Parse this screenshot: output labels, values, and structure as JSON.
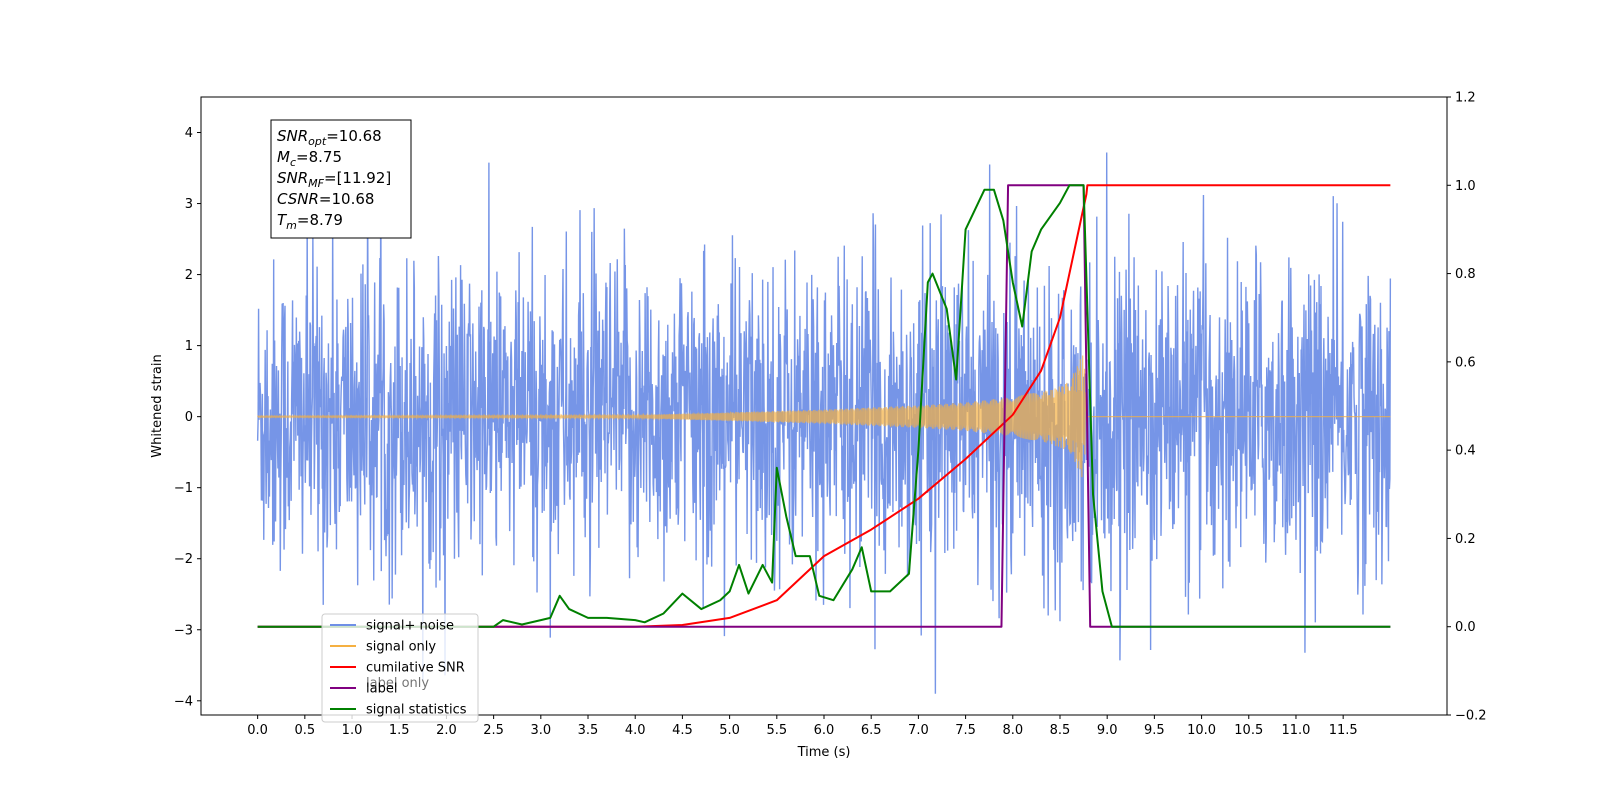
{
  "chart_data": {
    "type": "line",
    "title": "",
    "xlabel": "Time (s)",
    "ylabel": "Whitened strain",
    "xlim": [
      -0.6,
      12.6
    ],
    "ylim": [
      -4.2,
      4.5
    ],
    "y2lim": [
      -0.2,
      1.2
    ],
    "x_ticks": [
      "0.0",
      "0.5",
      "1.0",
      "1.5",
      "2.0",
      "2.5",
      "3.0",
      "3.5",
      "4.0",
      "4.5",
      "5.0",
      "5.5",
      "6.0",
      "6.5",
      "7.0",
      "7.5",
      "8.0",
      "8.5",
      "9.0",
      "9.5",
      "10.0",
      "10.5",
      "11.0",
      "11.5"
    ],
    "y_ticks": [
      "−4",
      "−3",
      "−2",
      "−1",
      "0",
      "1",
      "2",
      "3",
      "4"
    ],
    "y2_ticks": [
      "−0.2",
      "0.0",
      "0.2",
      "0.4",
      "0.6",
      "0.8",
      "1.0",
      "1.2"
    ],
    "info_box": [
      {
        "sym": "SNR",
        "sub": "opt",
        "value": "=10.68"
      },
      {
        "sym": "M",
        "sub": "c",
        "value": "=8.75"
      },
      {
        "sym": "SNR",
        "sub": "MF",
        "value": "=[11.92]"
      },
      {
        "sym": "CSNR",
        "sub": "",
        "value": "=10.68"
      },
      {
        "sym": "T",
        "sub": "m",
        "value": "=8.79"
      }
    ],
    "legend": {
      "placement": "lower-left",
      "entries": [
        {
          "label": "signal+ noise",
          "color": "#6f8fe6"
        },
        {
          "label": "signal only",
          "color": "#f5b041"
        },
        {
          "label": "cumilative SNR",
          "color": "#ff0000"
        },
        {
          "label": "label",
          "color": "#800080"
        },
        {
          "label": "signal statistics",
          "color": "#008000"
        }
      ],
      "ghost_label": "label only"
    },
    "series": [
      {
        "name": "signal+ noise",
        "axis": "left",
        "color": "#6f8fe6",
        "kind": "noise",
        "x_range": [
          0.0,
          12.0
        ],
        "envelope": [
          [
            0.0,
            2.6
          ],
          [
            8.79,
            2.6
          ],
          [
            12.0,
            2.6
          ]
        ]
      },
      {
        "name": "signal only",
        "axis": "left",
        "color": "#f5b041",
        "kind": "chirp",
        "x_range": [
          0.0,
          12.0
        ],
        "envelope": [
          [
            0.0,
            0.01
          ],
          [
            4.0,
            0.02
          ],
          [
            5.0,
            0.06
          ],
          [
            6.0,
            0.1
          ],
          [
            7.0,
            0.16
          ],
          [
            7.5,
            0.2
          ],
          [
            8.0,
            0.28
          ],
          [
            8.4,
            0.38
          ],
          [
            8.6,
            0.5
          ],
          [
            8.75,
            0.9
          ],
          [
            8.79,
            0.0
          ],
          [
            12.0,
            0.0
          ]
        ]
      },
      {
        "name": "cumilative SNR",
        "axis": "right",
        "color": "#ff0000",
        "points": [
          [
            0.0,
            0.0
          ],
          [
            4.0,
            0.0
          ],
          [
            4.5,
            0.004
          ],
          [
            5.0,
            0.02
          ],
          [
            5.5,
            0.06
          ],
          [
            6.0,
            0.16
          ],
          [
            6.5,
            0.22
          ],
          [
            7.0,
            0.29
          ],
          [
            7.5,
            0.38
          ],
          [
            8.0,
            0.48
          ],
          [
            8.3,
            0.58
          ],
          [
            8.5,
            0.7
          ],
          [
            8.65,
            0.85
          ],
          [
            8.75,
            0.95
          ],
          [
            8.78,
            0.98
          ],
          [
            8.79,
            1.0
          ],
          [
            12.0,
            1.0
          ]
        ]
      },
      {
        "name": "label",
        "axis": "right",
        "color": "#800080",
        "points": [
          [
            0.0,
            0.0
          ],
          [
            7.88,
            0.0
          ],
          [
            7.95,
            1.0
          ],
          [
            8.75,
            1.0
          ],
          [
            8.82,
            0.0
          ],
          [
            12.0,
            0.0
          ]
        ]
      },
      {
        "name": "signal statistics",
        "axis": "right",
        "color": "#008000",
        "points": [
          [
            0.0,
            0.0
          ],
          [
            2.0,
            0.0
          ],
          [
            2.5,
            0.0
          ],
          [
            2.6,
            0.015
          ],
          [
            2.8,
            0.005
          ],
          [
            3.0,
            0.015
          ],
          [
            3.1,
            0.02
          ],
          [
            3.2,
            0.07
          ],
          [
            3.3,
            0.04
          ],
          [
            3.5,
            0.02
          ],
          [
            3.7,
            0.02
          ],
          [
            4.0,
            0.015
          ],
          [
            4.1,
            0.01
          ],
          [
            4.3,
            0.03
          ],
          [
            4.5,
            0.075
          ],
          [
            4.7,
            0.04
          ],
          [
            4.9,
            0.06
          ],
          [
            5.0,
            0.08
          ],
          [
            5.1,
            0.14
          ],
          [
            5.2,
            0.075
          ],
          [
            5.35,
            0.14
          ],
          [
            5.45,
            0.1
          ],
          [
            5.5,
            0.36
          ],
          [
            5.6,
            0.25
          ],
          [
            5.7,
            0.16
          ],
          [
            5.85,
            0.16
          ],
          [
            5.95,
            0.07
          ],
          [
            6.1,
            0.06
          ],
          [
            6.3,
            0.13
          ],
          [
            6.4,
            0.18
          ],
          [
            6.5,
            0.08
          ],
          [
            6.7,
            0.08
          ],
          [
            6.9,
            0.12
          ],
          [
            7.0,
            0.4
          ],
          [
            7.1,
            0.78
          ],
          [
            7.15,
            0.8
          ],
          [
            7.3,
            0.72
          ],
          [
            7.4,
            0.56
          ],
          [
            7.5,
            0.9
          ],
          [
            7.7,
            0.99
          ],
          [
            7.8,
            0.99
          ],
          [
            7.9,
            0.92
          ],
          [
            8.0,
            0.78
          ],
          [
            8.1,
            0.68
          ],
          [
            8.2,
            0.85
          ],
          [
            8.3,
            0.9
          ],
          [
            8.5,
            0.96
          ],
          [
            8.6,
            1.0
          ],
          [
            8.75,
            1.0
          ],
          [
            8.85,
            0.3
          ],
          [
            8.95,
            0.08
          ],
          [
            9.05,
            0.0
          ],
          [
            12.0,
            0.0
          ]
        ]
      }
    ]
  }
}
